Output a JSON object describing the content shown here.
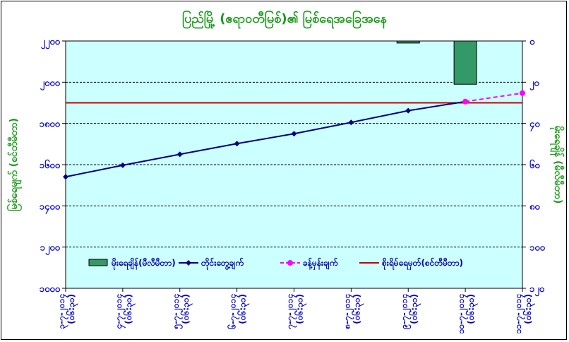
{
  "chart_data": {
    "type": "line",
    "title": "ပြည်မြို့ (ဧရာဝတီမြစ်)၏ မြစ်ရေအခြေအနေ",
    "ylabel_left": "မြစ်ရေမျက် (စင်တီမီတာ)",
    "ylabel_right": "မိုးရေချိန် (မီလီမီတာ)",
    "left_axis": {
      "min": 1000,
      "max": 2200,
      "step": 200,
      "ticks": [
        "၁၀၀၀",
        "၁၂၀၀",
        "၁၄၀၀",
        "၁၆၀၀",
        "၁၈၀၀",
        "၂၀၀၀",
        "၂၂၀၀"
      ]
    },
    "right_axis": {
      "min": 0,
      "max": 120,
      "step": 20,
      "reversed": true,
      "ticks": [
        "၀",
        "၂၀",
        "၄၀",
        "၆၀",
        "၈၀",
        "၁၀၀",
        "၁၂၀"
      ]
    },
    "categories": [
      "၃-၇-၂၀၁၄ (၀၆:၃၀)",
      "၄-၇-၂၀၁၄ (၀၆:၃၀)",
      "၅-၇-၂၀၁၄ (၀၆:၃၀)",
      "၆-၇-၂၀၁၄ (၀၆:၃၀)",
      "၇-၇-၂၀၁၄ (၀၆:၃၀)",
      "၈-၇-၂၀၁၄ (၀၆:၃၀)",
      "၉-၇-၂၀၁၄ (၀၆:၃၀)",
      "၁၀-၇-၂၀၁၄ (၀၆:၃၀)",
      "၁၁-၇-၂၀၁၄ (၀၆:၃၀)"
    ],
    "series": [
      {
        "name": "မိုးရေချိန်(မီလီမီတာ)",
        "type": "bar",
        "axis": "right",
        "color": "#339966",
        "values": [
          null,
          null,
          null,
          null,
          null,
          null,
          1,
          21,
          null
        ]
      },
      {
        "name": "တိုင်းတွေ့ချက်",
        "type": "line",
        "axis": "left",
        "color": "#000080",
        "marker": "diamond",
        "values": [
          1541,
          1597,
          1650,
          1702,
          1750,
          1805,
          1862,
          1906,
          null
        ]
      },
      {
        "name": "ခန့်မှန်းချက်",
        "type": "line",
        "axis": "left",
        "color": "#ff00ff",
        "dash": true,
        "marker": "circle",
        "values": [
          null,
          null,
          null,
          null,
          null,
          null,
          null,
          1906,
          1947
        ]
      },
      {
        "name": "စိုးရိမ်ရေမှတ်(စင်တီမီတာ)",
        "type": "hline",
        "axis": "left",
        "color": "#cc0000",
        "value": 1900
      }
    ],
    "grid": {
      "horizontal": true,
      "style": "dashed"
    },
    "plot_background": "#ccffff",
    "legend_position": "bottom-inside"
  }
}
